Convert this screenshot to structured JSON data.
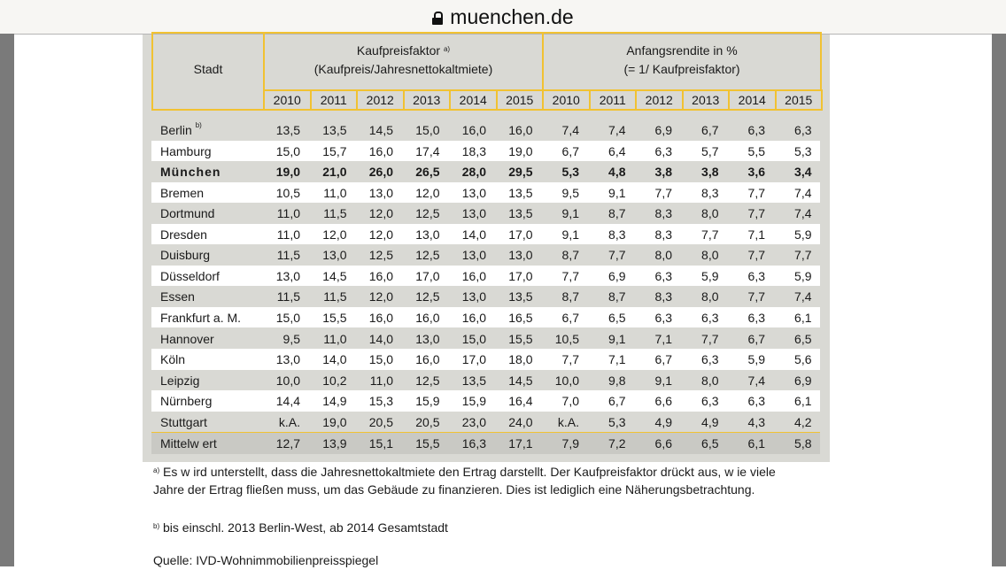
{
  "browser": {
    "url": "muenchen.de",
    "lock_icon": "lock-icon"
  },
  "table": {
    "header": {
      "city": "Stadt",
      "group1_title": "Kaufpreisfaktor",
      "group1_note": "a)",
      "group1_subtitle": "(Kaufpreis/Jahresnettokaltmiete)",
      "group2_title": "Anfangsrendite in %",
      "group2_subtitle": "(= 1/ Kaufpreisfaktor)",
      "years": [
        "2010",
        "2011",
        "2012",
        "2013",
        "2014",
        "2015",
        "2010",
        "2011",
        "2012",
        "2013",
        "2014",
        "2015"
      ]
    },
    "rows": [
      {
        "city": "Berlin",
        "note": "b)",
        "values": [
          "13,5",
          "13,5",
          "14,5",
          "15,0",
          "16,0",
          "16,0",
          "7,4",
          "7,4",
          "6,9",
          "6,7",
          "6,3",
          "6,3"
        ]
      },
      {
        "city": "Hamburg",
        "values": [
          "15,0",
          "15,7",
          "16,0",
          "17,4",
          "18,3",
          "19,0",
          "6,7",
          "6,4",
          "6,3",
          "5,7",
          "5,5",
          "5,3"
        ]
      },
      {
        "city": "München",
        "bold": true,
        "values": [
          "19,0",
          "21,0",
          "26,0",
          "26,5",
          "28,0",
          "29,5",
          "5,3",
          "4,8",
          "3,8",
          "3,8",
          "3,6",
          "3,4"
        ]
      },
      {
        "city": "Bremen",
        "values": [
          "10,5",
          "11,0",
          "13,0",
          "12,0",
          "13,0",
          "13,5",
          "9,5",
          "9,1",
          "7,7",
          "8,3",
          "7,7",
          "7,4"
        ]
      },
      {
        "city": "Dortmund",
        "values": [
          "11,0",
          "11,5",
          "12,0",
          "12,5",
          "13,0",
          "13,5",
          "9,1",
          "8,7",
          "8,3",
          "8,0",
          "7,7",
          "7,4"
        ]
      },
      {
        "city": "Dresden",
        "values": [
          "11,0",
          "12,0",
          "12,0",
          "13,0",
          "14,0",
          "17,0",
          "9,1",
          "8,3",
          "8,3",
          "7,7",
          "7,1",
          "5,9"
        ]
      },
      {
        "city": "Duisburg",
        "values": [
          "11,5",
          "13,0",
          "12,5",
          "12,5",
          "13,0",
          "13,0",
          "8,7",
          "7,7",
          "8,0",
          "8,0",
          "7,7",
          "7,7"
        ]
      },
      {
        "city": "Düsseldorf",
        "values": [
          "13,0",
          "14,5",
          "16,0",
          "17,0",
          "16,0",
          "17,0",
          "7,7",
          "6,9",
          "6,3",
          "5,9",
          "6,3",
          "5,9"
        ]
      },
      {
        "city": "Essen",
        "values": [
          "11,5",
          "11,5",
          "12,0",
          "12,5",
          "13,0",
          "13,5",
          "8,7",
          "8,7",
          "8,3",
          "8,0",
          "7,7",
          "7,4"
        ]
      },
      {
        "city": "Frankfurt a. M.",
        "values": [
          "15,0",
          "15,5",
          "16,0",
          "16,0",
          "16,0",
          "16,5",
          "6,7",
          "6,5",
          "6,3",
          "6,3",
          "6,3",
          "6,1"
        ]
      },
      {
        "city": "Hannover",
        "values": [
          "9,5",
          "11,0",
          "14,0",
          "13,0",
          "15,0",
          "15,5",
          "10,5",
          "9,1",
          "7,1",
          "7,7",
          "6,7",
          "6,5"
        ]
      },
      {
        "city": "Köln",
        "values": [
          "13,0",
          "14,0",
          "15,0",
          "16,0",
          "17,0",
          "18,0",
          "7,7",
          "7,1",
          "6,7",
          "6,3",
          "5,9",
          "5,6"
        ]
      },
      {
        "city": "Leipzig",
        "values": [
          "10,0",
          "10,2",
          "11,0",
          "12,5",
          "13,5",
          "14,5",
          "10,0",
          "9,8",
          "9,1",
          "8,0",
          "7,4",
          "6,9"
        ]
      },
      {
        "city": "Nürnberg",
        "values": [
          "14,4",
          "14,9",
          "15,3",
          "15,9",
          "15,9",
          "16,4",
          "7,0",
          "6,7",
          "6,6",
          "6,3",
          "6,3",
          "6,1"
        ]
      },
      {
        "city": "Stuttgart",
        "values": [
          "k.A.",
          "19,0",
          "20,5",
          "20,5",
          "23,0",
          "24,0",
          "k.A.",
          "5,3",
          "4,9",
          "4,9",
          "4,3",
          "4,2"
        ]
      },
      {
        "city": "Mittelw ert",
        "average": true,
        "values": [
          "12,7",
          "13,9",
          "15,1",
          "15,5",
          "16,3",
          "17,1",
          "7,9",
          "7,2",
          "6,6",
          "6,5",
          "6,1",
          "5,8"
        ]
      }
    ]
  },
  "footnotes": {
    "a_mark": "a)",
    "a_text": "Es w ird unterstellt, dass die Jahresnettokaltmiete den Ertrag darstellt. Der Kaufpreisfaktor drückt aus, w ie viele Jahre der Ertrag fließen muss, um das Gebäude zu finanzieren. Dies ist lediglich eine Näherungsbetrachtung.",
    "b_mark": "b)",
    "b_text": "bis einschl. 2013 Berlin-West, ab 2014 Gesamtstadt",
    "source": "Quelle: IVD-Wohnimmobilienpreisspiegel"
  },
  "colors": {
    "accent_border": "#f1c232",
    "panel_bg": "#d9d9d4",
    "avg_row_bg": "#c9c9c4"
  }
}
